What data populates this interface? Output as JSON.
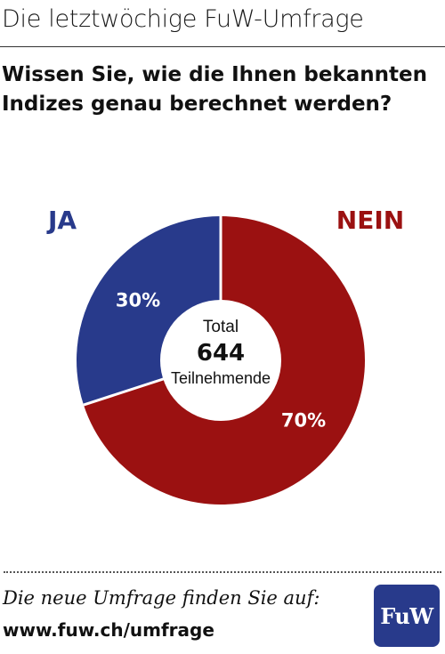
{
  "header": {
    "title": "Die letztwöchige FuW-Umfrage"
  },
  "question": {
    "line1": "Wissen Sie, wie die Ihnen bekannten",
    "line2": "Indizes genau berechnet werden?"
  },
  "chart_data": {
    "type": "pie",
    "donut": true,
    "categories": [
      "JA",
      "NEIN"
    ],
    "values": [
      30,
      70
    ],
    "labels": [
      "30%",
      "70%"
    ],
    "colors": [
      "#283a8b",
      "#9b1111"
    ],
    "center": {
      "line1": "Total",
      "value": "644",
      "line2": "Teilnehmende"
    }
  },
  "footer": {
    "line1": "Die neue Umfrage finden Sie auf:",
    "url": "www.fuw.ch/umfrage",
    "logo_text": "FuW"
  }
}
